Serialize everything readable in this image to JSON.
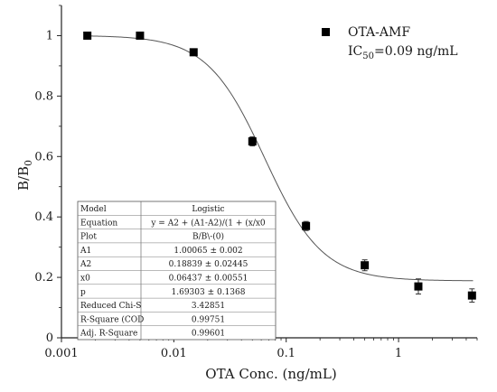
{
  "chart_data": {
    "type": "scatter",
    "xlabel": "OTA Conc. (ng/mL)",
    "ylabel": "B/B",
    "ylabel_sub": "0",
    "x_scale": "log",
    "xlim": [
      0.001,
      5
    ],
    "ylim": [
      0,
      1.1
    ],
    "x_ticks": [
      0.001,
      0.01,
      0.1,
      1
    ],
    "x_tick_labels": [
      "0.001",
      "0.01",
      "0.1",
      "1"
    ],
    "y_ticks": [
      0,
      0.2,
      0.4,
      0.6,
      0.8,
      1
    ],
    "y_tick_labels": [
      "0",
      "0.2",
      "0.4",
      "0.6",
      "0.8",
      "1"
    ],
    "grid": false,
    "legend_position": "top-right",
    "series": [
      {
        "name": "OTA-AMF",
        "marker": "square",
        "color": "#000000",
        "points": [
          {
            "x": 0.0017,
            "y": 1.0,
            "err": 0.008
          },
          {
            "x": 0.005,
            "y": 1.0,
            "err": 0.008
          },
          {
            "x": 0.015,
            "y": 0.945,
            "err": 0.01
          },
          {
            "x": 0.05,
            "y": 0.65,
            "err": 0.015
          },
          {
            "x": 0.15,
            "y": 0.37,
            "err": 0.015
          },
          {
            "x": 0.5,
            "y": 0.24,
            "err": 0.018
          },
          {
            "x": 1.5,
            "y": 0.17,
            "err": 0.025
          },
          {
            "x": 4.5,
            "y": 0.14,
            "err": 0.022
          }
        ]
      }
    ],
    "fit": {
      "model": "logistic",
      "A1": 1.00065,
      "A2": 0.18839,
      "x0": 0.06437,
      "p": 1.69303,
      "color": "#555555"
    },
    "annotation": {
      "prefix": "IC",
      "sub": "50",
      "suffix": "=0.09 ng/mL"
    },
    "fit_table": [
      [
        "Model",
        "Logistic"
      ],
      [
        "Equation",
        "y = A2 + (A1-A2)/(1 + (x/x0"
      ],
      [
        "Plot",
        "B/B\\-(0)"
      ],
      [
        "A1",
        "1.00065 ± 0.002"
      ],
      [
        "A2",
        "0.18839 ± 0.02445"
      ],
      [
        "x0",
        "0.06437 ± 0.00551"
      ],
      [
        "p",
        "1.69303 ± 0.1368"
      ],
      [
        "Reduced Chi-S",
        "3.42851"
      ],
      [
        "R-Square (COD",
        "0.99751"
      ],
      [
        "Adj. R-Square",
        "0.99601"
      ]
    ]
  }
}
